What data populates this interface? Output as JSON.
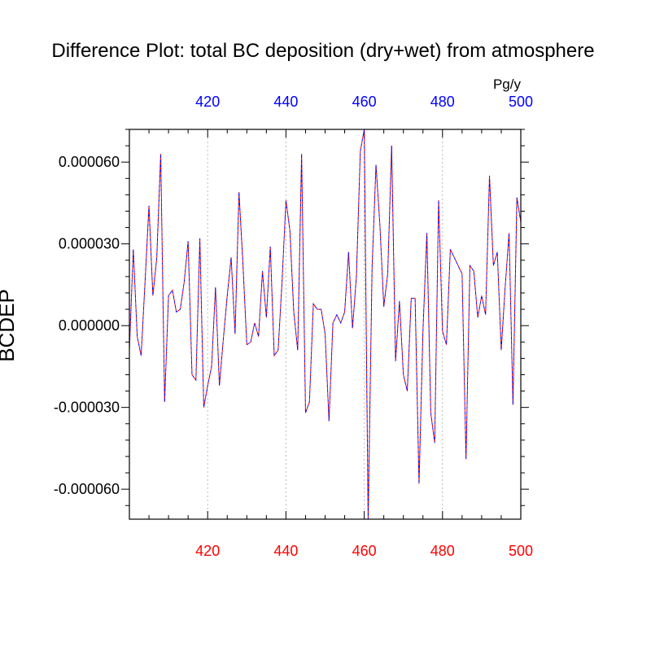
{
  "chart_data": {
    "type": "line",
    "title": "Difference Plot: total BC deposition (dry+wet) from atmosphere",
    "ylabel": "BCDEP",
    "units": "Pg/y",
    "xlim": [
      400,
      500
    ],
    "ylim": [
      -7.1e-05,
      7.2e-05
    ],
    "x_ticks": [
      420,
      440,
      460,
      480,
      500
    ],
    "y_ticks": [
      {
        "value": 6e-05,
        "label": "0.000060"
      },
      {
        "value": 3e-05,
        "label": "0.000030"
      },
      {
        "value": 0.0,
        "label": "0.000000"
      },
      {
        "value": -3e-05,
        "label": "-0.000030"
      },
      {
        "value": -6e-05,
        "label": "-0.000060"
      }
    ],
    "grid": "x-dotted",
    "colors": {
      "top_axis_labels": "#0000ff",
      "bottom_axis_labels": "#ff0000",
      "line_a": "#0000ff",
      "line_b": "#ff0000"
    },
    "series": [
      {
        "line_style": "dashed",
        "x": [
          400,
          401,
          402,
          403,
          404,
          405,
          406,
          407,
          408,
          409,
          410,
          411,
          412,
          413,
          414,
          415,
          416,
          417,
          418,
          419,
          420,
          421,
          422,
          423,
          424,
          425,
          426,
          427,
          428,
          429,
          430,
          431,
          432,
          433,
          434,
          435,
          436,
          437,
          438,
          439,
          440,
          441,
          442,
          443,
          444,
          445,
          446,
          447,
          448,
          449,
          450,
          451,
          452,
          453,
          454,
          455,
          456,
          457,
          458,
          459,
          460,
          461,
          462,
          463,
          464,
          465,
          466,
          467,
          468,
          469,
          470,
          471,
          472,
          473,
          474,
          475,
          476,
          477,
          478,
          479,
          480,
          481,
          482,
          483,
          484,
          485,
          486,
          487,
          488,
          489,
          490,
          491,
          492,
          493,
          494,
          495,
          496,
          497,
          498,
          499,
          500
        ],
        "y": [
          -9e-06,
          2.8e-05,
          -4e-06,
          -1.1e-05,
          1.6e-05,
          4.4e-05,
          1.1e-05,
          2.5e-05,
          6.3e-05,
          -2.8e-05,
          1.1e-05,
          1.3e-05,
          5e-06,
          6e-06,
          1.6e-05,
          3.1e-05,
          -1.8e-05,
          -2e-05,
          3.2e-05,
          -3e-05,
          -2.2e-05,
          -1.5e-05,
          1.4e-05,
          -2.2e-05,
          -5e-06,
          1.1e-05,
          2.5e-05,
          -3e-06,
          4.9e-05,
          2.3e-05,
          -7e-06,
          -6e-06,
          1e-06,
          -4e-06,
          2e-05,
          3e-06,
          2.9e-05,
          -1.1e-05,
          -9e-06,
          1.6e-05,
          4.6e-05,
          3.5e-05,
          5e-06,
          -9e-06,
          6.3e-05,
          -3.2e-05,
          -2.8e-05,
          8e-06,
          6e-06,
          6e-06,
          -3e-06,
          -3.5e-05,
          1e-06,
          4e-06,
          1e-06,
          5e-06,
          2.7e-05,
          -1e-06,
          1.8e-05,
          6.4e-05,
          7.2e-05,
          -7.1e-05,
          2.1e-05,
          5.9e-05,
          3.7e-05,
          7e-06,
          1.9e-05,
          6.6e-05,
          -1.3e-05,
          9e-06,
          -1.8e-05,
          -2.4e-05,
          1e-05,
          1e-05,
          -5.8e-05,
          -2e-06,
          3.4e-05,
          -3.2e-05,
          -4.3e-05,
          4.6e-05,
          -2e-06,
          -7e-06,
          2.8e-05,
          2.5e-05,
          2.2e-05,
          1.9e-05,
          -4.9e-05,
          2.2e-05,
          2e-05,
          3e-06,
          1.1e-05,
          4e-06,
          5.5e-05,
          2.2e-05,
          2.7e-05,
          -9e-06,
          1.4e-05,
          3.4e-05,
          -2.9e-05,
          4.7e-05,
          3.8e-05
        ]
      }
    ]
  }
}
